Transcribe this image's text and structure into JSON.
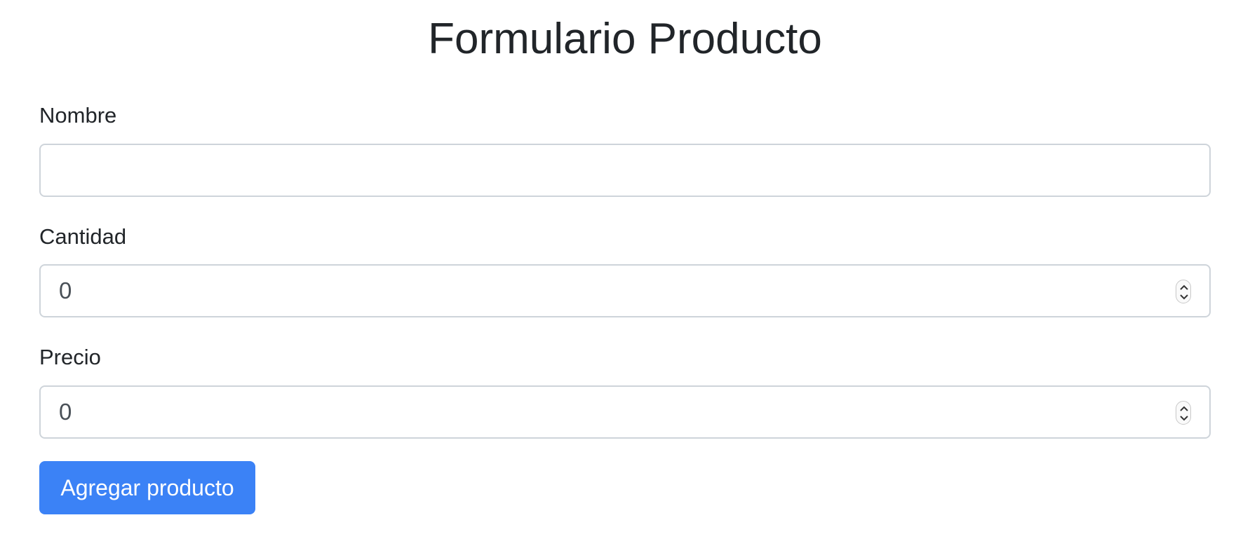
{
  "page": {
    "title": "Formulario Producto"
  },
  "form": {
    "nombre": {
      "label": "Nombre",
      "value": ""
    },
    "cantidad": {
      "label": "Cantidad",
      "value": "0"
    },
    "precio": {
      "label": "Precio",
      "value": "0"
    },
    "submit_label": "Agregar producto"
  },
  "colors": {
    "primary": "#3b82f6",
    "text": "#212529",
    "border": "#ced4da"
  },
  "icons": {
    "spinner": "stepper-up-down-icon"
  }
}
